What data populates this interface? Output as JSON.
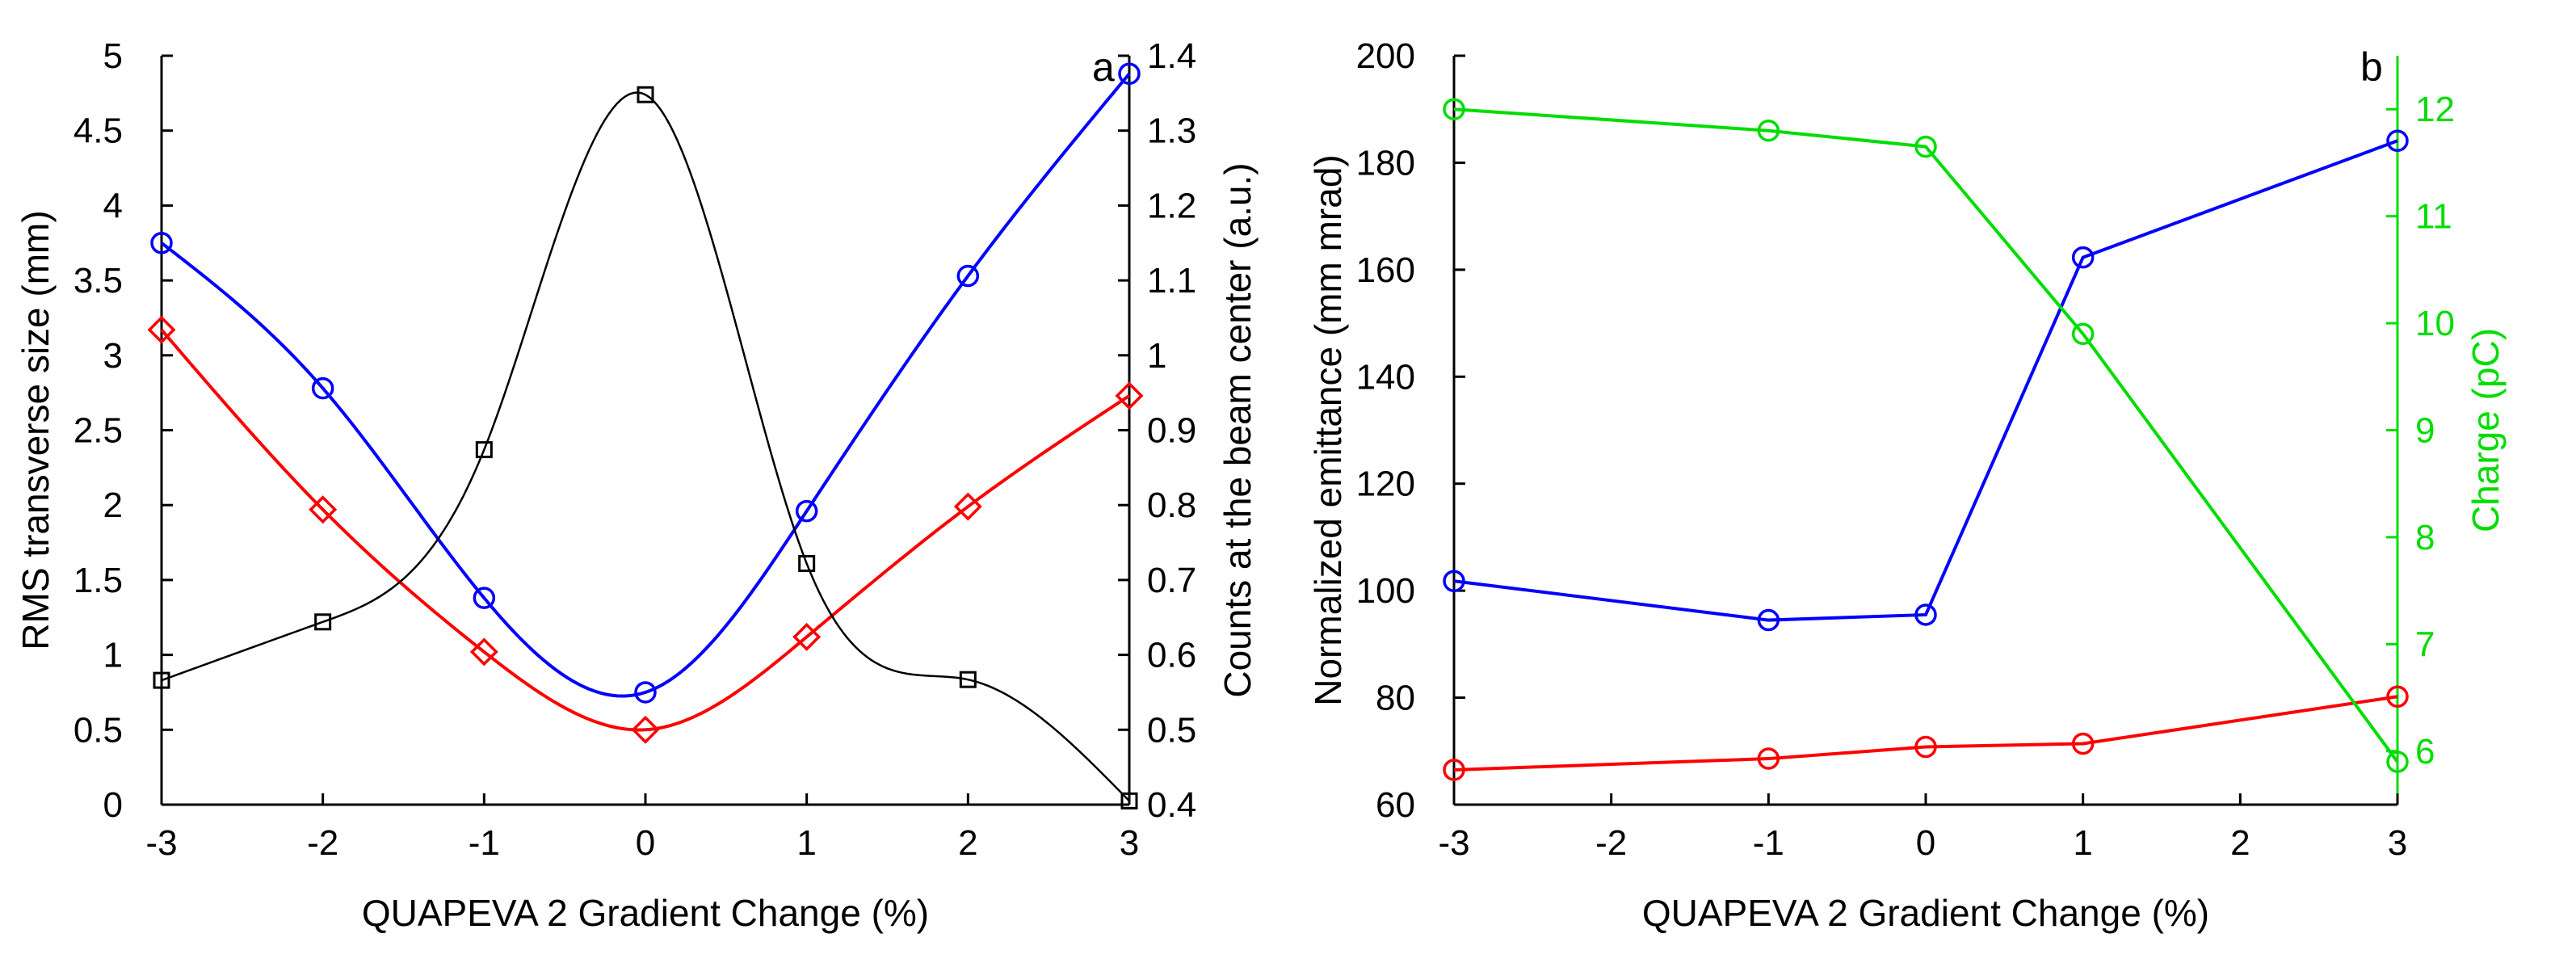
{
  "chart_data": [
    {
      "panel": "a",
      "type": "line",
      "xlabel": "QUAPEVA 2 Gradient Change (%)",
      "ylabel": "RMS transverse size (mm)",
      "y2label": "Counts at the beam center (a.u.)",
      "xlim": [
        -3,
        3
      ],
      "ylim": [
        0,
        5
      ],
      "y2lim": [
        0.4,
        1.4
      ],
      "xticks": [
        "-3",
        "-2",
        "-1",
        "0",
        "1",
        "2",
        "3"
      ],
      "yticks": [
        "0",
        "0.5",
        "1",
        "1.5",
        "2",
        "2.5",
        "3",
        "3.5",
        "4",
        "4.5",
        "5"
      ],
      "y2ticks": [
        "0.4",
        "0.5",
        "0.6",
        "0.7",
        "0.8",
        "0.9",
        "1",
        "1.1",
        "1.2",
        "1.3",
        "1.4"
      ],
      "x": [
        -3,
        -2,
        -1,
        0,
        1,
        2,
        3
      ],
      "series": [
        {
          "axis": "left",
          "color": "#0000ff",
          "marker": "circle",
          "smooth": true,
          "values": [
            3.75,
            2.78,
            1.38,
            0.75,
            1.96,
            3.53,
            4.88
          ]
        },
        {
          "axis": "left",
          "color": "#ff0000",
          "marker": "diamond",
          "smooth": true,
          "values": [
            3.17,
            1.97,
            1.02,
            0.5,
            1.12,
            1.99,
            2.73
          ]
        },
        {
          "axis": "right",
          "color": "#000000",
          "marker": "square",
          "smooth": true,
          "values": [
            0.566,
            0.644,
            0.874,
            1.348,
            0.722,
            0.567,
            0.405
          ]
        }
      ],
      "grid": false
    },
    {
      "panel": "b",
      "type": "line",
      "xlabel": "QUAPEVA 2 Gradient Change (%)",
      "ylabel": "Normalized emittance (mm mrad)",
      "y2label": "Charge (pC)",
      "xlim": [
        -3,
        3
      ],
      "ylim": [
        60,
        200
      ],
      "y2lim": [
        5.5,
        12.5
      ],
      "xticks": [
        "-3",
        "-2",
        "-1",
        "0",
        "1",
        "2",
        "3"
      ],
      "yticks": [
        "60",
        "80",
        "100",
        "120",
        "140",
        "160",
        "180",
        "200"
      ],
      "y2ticks": [
        "6",
        "7",
        "8",
        "9",
        "10",
        "11",
        "12"
      ],
      "x": [
        -3,
        -1,
        0,
        1,
        3
      ],
      "series": [
        {
          "axis": "left",
          "color": "#0000ff",
          "marker": "circle",
          "smooth": false,
          "values": [
            101.8,
            94.5,
            95.5,
            162.3,
            184.1
          ]
        },
        {
          "axis": "left",
          "color": "#ff0000",
          "marker": "circle",
          "smooth": false,
          "values": [
            66.5,
            68.6,
            70.8,
            71.4,
            80.2
          ]
        },
        {
          "axis": "right",
          "color": "#00dd00",
          "marker": "circle",
          "smooth": false,
          "values": [
            12.0,
            11.8,
            11.65,
            9.9,
            5.9
          ]
        }
      ],
      "y2color": "#00dd00",
      "grid": false
    }
  ]
}
